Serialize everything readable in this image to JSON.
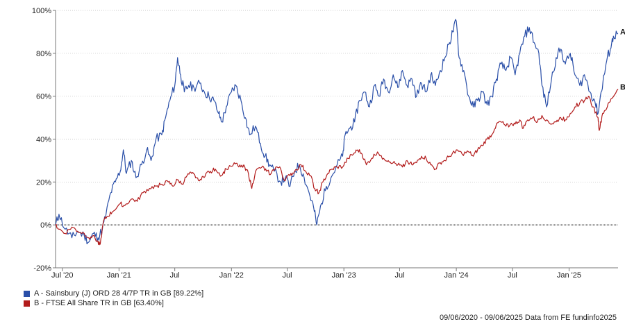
{
  "chart_data": {
    "type": "line",
    "y_axis": {
      "ticks": [
        "100%",
        "80%",
        "60%",
        "40%",
        "20%",
        "0%",
        "-20%"
      ],
      "tick_values": [
        100,
        80,
        60,
        40,
        20,
        0,
        -20
      ],
      "ylim": [
        -20,
        100
      ]
    },
    "x_axis": {
      "ticks": [
        "Jul '20",
        "Jan '21",
        "Jul",
        "Jan '22",
        "Jul",
        "Jan '23",
        "Jul",
        "Jan '24",
        "Jul",
        "Jan '25"
      ],
      "tick_dates": [
        "2020-07-01",
        "2021-01-01",
        "2021-07-01",
        "2022-01-01",
        "2022-07-01",
        "2023-01-01",
        "2023-07-01",
        "2024-01-01",
        "2024-07-01",
        "2025-01-01"
      ],
      "range": [
        "2020-06-09",
        "2025-06-09"
      ]
    },
    "grid": "horizontal dotted",
    "zero_line": "dotted black",
    "series": [
      {
        "name": "A - Sainsbury (J) ORD 28 4/7P TR in GB [89.22%]",
        "end_label": "A",
        "color": "#2a4fa8",
        "points": [
          [
            "2020-06-09",
            0
          ],
          [
            "2020-06-20",
            5
          ],
          [
            "2020-07-10",
            -2
          ],
          [
            "2020-08-01",
            -6
          ],
          [
            "2020-08-20",
            -3
          ],
          [
            "2020-09-10",
            -5
          ],
          [
            "2020-09-25",
            -8
          ],
          [
            "2020-10-10",
            -4
          ],
          [
            "2020-10-25",
            -6
          ],
          [
            "2020-11-08",
            -2
          ],
          [
            "2020-11-20",
            5
          ],
          [
            "2020-12-05",
            15
          ],
          [
            "2020-12-20",
            20
          ],
          [
            "2021-01-05",
            25
          ],
          [
            "2021-01-15",
            35
          ],
          [
            "2021-01-25",
            24
          ],
          [
            "2021-02-10",
            30
          ],
          [
            "2021-02-25",
            22
          ],
          [
            "2021-03-15",
            28
          ],
          [
            "2021-04-01",
            35
          ],
          [
            "2021-04-15",
            30
          ],
          [
            "2021-05-01",
            40
          ],
          [
            "2021-05-20",
            42
          ],
          [
            "2021-06-01",
            50
          ],
          [
            "2021-06-15",
            58
          ],
          [
            "2021-07-01",
            65
          ],
          [
            "2021-07-10",
            78
          ],
          [
            "2021-07-20",
            70
          ],
          [
            "2021-08-01",
            62
          ],
          [
            "2021-08-15",
            65
          ],
          [
            "2021-09-01",
            64
          ],
          [
            "2021-09-20",
            66
          ],
          [
            "2021-10-05",
            62
          ],
          [
            "2021-10-20",
            60
          ],
          [
            "2021-11-05",
            58
          ],
          [
            "2021-11-20",
            52
          ],
          [
            "2021-12-01",
            48
          ],
          [
            "2021-12-15",
            55
          ],
          [
            "2022-01-01",
            62
          ],
          [
            "2022-01-15",
            65
          ],
          [
            "2022-02-01",
            58
          ],
          [
            "2022-02-15",
            50
          ],
          [
            "2022-03-01",
            42
          ],
          [
            "2022-03-20",
            46
          ],
          [
            "2022-04-05",
            38
          ],
          [
            "2022-04-20",
            32
          ],
          [
            "2022-05-05",
            28
          ],
          [
            "2022-05-20",
            25
          ],
          [
            "2022-06-10",
            20
          ],
          [
            "2022-06-25",
            22
          ],
          [
            "2022-07-10",
            18
          ],
          [
            "2022-07-25",
            25
          ],
          [
            "2022-08-10",
            28
          ],
          [
            "2022-08-25",
            22
          ],
          [
            "2022-09-10",
            15
          ],
          [
            "2022-09-25",
            8
          ],
          [
            "2022-10-05",
            0
          ],
          [
            "2022-10-20",
            10
          ],
          [
            "2022-11-05",
            18
          ],
          [
            "2022-11-20",
            22
          ],
          [
            "2022-12-10",
            28
          ],
          [
            "2022-12-28",
            32
          ],
          [
            "2023-01-05",
            42
          ],
          [
            "2023-01-20",
            45
          ],
          [
            "2023-02-05",
            48
          ],
          [
            "2023-02-20",
            58
          ],
          [
            "2023-03-10",
            62
          ],
          [
            "2023-03-25",
            55
          ],
          [
            "2023-04-10",
            65
          ],
          [
            "2023-04-25",
            60
          ],
          [
            "2023-05-10",
            68
          ],
          [
            "2023-05-25",
            62
          ],
          [
            "2023-06-10",
            70
          ],
          [
            "2023-06-25",
            64
          ],
          [
            "2023-07-10",
            72
          ],
          [
            "2023-07-25",
            65
          ],
          [
            "2023-08-10",
            68
          ],
          [
            "2023-08-25",
            60
          ],
          [
            "2023-09-10",
            66
          ],
          [
            "2023-09-25",
            62
          ],
          [
            "2023-10-10",
            70
          ],
          [
            "2023-10-25",
            65
          ],
          [
            "2023-11-10",
            72
          ],
          [
            "2023-11-25",
            78
          ],
          [
            "2023-12-10",
            85
          ],
          [
            "2023-12-20",
            90
          ],
          [
            "2024-01-01",
            95
          ],
          [
            "2024-01-10",
            78
          ],
          [
            "2024-01-25",
            72
          ],
          [
            "2024-02-10",
            60
          ],
          [
            "2024-02-25",
            55
          ],
          [
            "2024-03-10",
            58
          ],
          [
            "2024-03-25",
            62
          ],
          [
            "2024-04-10",
            56
          ],
          [
            "2024-04-25",
            60
          ],
          [
            "2024-05-10",
            68
          ],
          [
            "2024-05-25",
            75
          ],
          [
            "2024-06-10",
            72
          ],
          [
            "2024-06-25",
            78
          ],
          [
            "2024-07-10",
            70
          ],
          [
            "2024-07-25",
            80
          ],
          [
            "2024-08-10",
            88
          ],
          [
            "2024-08-25",
            92
          ],
          [
            "2024-09-10",
            85
          ],
          [
            "2024-09-25",
            80
          ],
          [
            "2024-10-05",
            65
          ],
          [
            "2024-10-20",
            55
          ],
          [
            "2024-11-05",
            68
          ],
          [
            "2024-11-20",
            78
          ],
          [
            "2024-12-05",
            82
          ],
          [
            "2024-12-20",
            75
          ],
          [
            "2025-01-05",
            80
          ],
          [
            "2025-01-20",
            70
          ],
          [
            "2025-02-05",
            65
          ],
          [
            "2025-02-20",
            70
          ],
          [
            "2025-03-10",
            62
          ],
          [
            "2025-03-25",
            58
          ],
          [
            "2025-04-05",
            52
          ],
          [
            "2025-04-15",
            62
          ],
          [
            "2025-04-25",
            70
          ],
          [
            "2025-05-05",
            78
          ],
          [
            "2025-05-15",
            82
          ],
          [
            "2025-05-25",
            88
          ],
          [
            "2025-06-09",
            89.22
          ]
        ]
      },
      {
        "name": "B - FTSE All Share TR in GB [63.40%]",
        "end_label": "B",
        "color": "#b21b1b",
        "points": [
          [
            "2020-06-09",
            0
          ],
          [
            "2020-06-20",
            -2
          ],
          [
            "2020-07-10",
            -4
          ],
          [
            "2020-08-01",
            -1
          ],
          [
            "2020-08-20",
            -3
          ],
          [
            "2020-09-10",
            -4
          ],
          [
            "2020-09-25",
            -6
          ],
          [
            "2020-10-10",
            -5
          ],
          [
            "2020-10-25",
            -8
          ],
          [
            "2020-11-01",
            -9
          ],
          [
            "2020-11-12",
            2
          ],
          [
            "2020-11-25",
            4
          ],
          [
            "2020-12-10",
            6
          ],
          [
            "2021-01-05",
            10
          ],
          [
            "2021-01-20",
            9
          ],
          [
            "2021-02-10",
            12
          ],
          [
            "2021-03-01",
            11
          ],
          [
            "2021-03-20",
            15
          ],
          [
            "2021-04-10",
            17
          ],
          [
            "2021-05-01",
            18
          ],
          [
            "2021-05-20",
            19
          ],
          [
            "2021-06-10",
            20
          ],
          [
            "2021-06-25",
            18
          ],
          [
            "2021-07-10",
            21
          ],
          [
            "2021-07-25",
            19
          ],
          [
            "2021-08-10",
            23
          ],
          [
            "2021-08-25",
            24
          ],
          [
            "2021-09-10",
            22
          ],
          [
            "2021-09-25",
            21
          ],
          [
            "2021-10-10",
            24
          ],
          [
            "2021-10-25",
            25
          ],
          [
            "2021-11-10",
            26
          ],
          [
            "2021-11-30",
            23
          ],
          [
            "2021-12-15",
            26
          ],
          [
            "2022-01-10",
            29
          ],
          [
            "2022-01-25",
            27
          ],
          [
            "2022-02-10",
            28
          ],
          [
            "2022-02-25",
            24
          ],
          [
            "2022-03-08",
            17
          ],
          [
            "2022-03-20",
            25
          ],
          [
            "2022-04-10",
            27
          ],
          [
            "2022-04-25",
            25
          ],
          [
            "2022-05-10",
            24
          ],
          [
            "2022-05-25",
            27
          ],
          [
            "2022-06-10",
            26
          ],
          [
            "2022-06-20",
            21
          ],
          [
            "2022-07-10",
            23
          ],
          [
            "2022-07-25",
            25
          ],
          [
            "2022-08-15",
            28
          ],
          [
            "2022-08-30",
            25
          ],
          [
            "2022-09-15",
            23
          ],
          [
            "2022-09-28",
            17
          ],
          [
            "2022-10-12",
            15
          ],
          [
            "2022-10-25",
            20
          ],
          [
            "2022-11-10",
            24
          ],
          [
            "2022-11-25",
            26
          ],
          [
            "2022-12-10",
            27
          ],
          [
            "2022-12-28",
            27
          ],
          [
            "2023-01-15",
            31
          ],
          [
            "2023-02-01",
            33
          ],
          [
            "2023-02-15",
            35
          ],
          [
            "2023-03-01",
            33
          ],
          [
            "2023-03-15",
            28
          ],
          [
            "2023-04-01",
            31
          ],
          [
            "2023-04-20",
            34
          ],
          [
            "2023-05-10",
            31
          ],
          [
            "2023-05-25",
            30
          ],
          [
            "2023-06-10",
            29
          ],
          [
            "2023-06-25",
            28
          ],
          [
            "2023-07-10",
            27
          ],
          [
            "2023-07-25",
            30
          ],
          [
            "2023-08-10",
            28
          ],
          [
            "2023-08-25",
            29
          ],
          [
            "2023-09-10",
            32
          ],
          [
            "2023-09-25",
            31
          ],
          [
            "2023-10-10",
            28
          ],
          [
            "2023-10-25",
            26
          ],
          [
            "2023-11-10",
            29
          ],
          [
            "2023-11-25",
            30
          ],
          [
            "2023-12-10",
            32
          ],
          [
            "2024-01-01",
            35
          ],
          [
            "2024-01-20",
            33
          ],
          [
            "2024-02-10",
            34
          ],
          [
            "2024-02-25",
            32
          ],
          [
            "2024-03-10",
            35
          ],
          [
            "2024-03-25",
            37
          ],
          [
            "2024-04-10",
            40
          ],
          [
            "2024-04-25",
            42
          ],
          [
            "2024-05-10",
            47
          ],
          [
            "2024-05-25",
            48
          ],
          [
            "2024-06-10",
            46
          ],
          [
            "2024-06-25",
            47
          ],
          [
            "2024-07-10",
            47
          ],
          [
            "2024-07-25",
            49
          ],
          [
            "2024-08-05",
            45
          ],
          [
            "2024-08-20",
            49
          ],
          [
            "2024-09-05",
            50
          ],
          [
            "2024-09-20",
            48
          ],
          [
            "2024-10-05",
            51
          ],
          [
            "2024-10-20",
            49
          ],
          [
            "2024-11-05",
            47
          ],
          [
            "2024-11-20",
            48
          ],
          [
            "2024-12-05",
            50
          ],
          [
            "2024-12-20",
            49
          ],
          [
            "2025-01-05",
            52
          ],
          [
            "2025-01-20",
            55
          ],
          [
            "2025-02-05",
            57
          ],
          [
            "2025-02-20",
            58
          ],
          [
            "2025-03-05",
            60
          ],
          [
            "2025-03-20",
            55
          ],
          [
            "2025-04-05",
            50
          ],
          [
            "2025-04-09",
            44
          ],
          [
            "2025-04-20",
            52
          ],
          [
            "2025-05-05",
            55
          ],
          [
            "2025-05-20",
            59
          ],
          [
            "2025-06-09",
            63.4
          ]
        ]
      }
    ]
  },
  "footer": {
    "text": "09/06/2020 - 09/06/2025 Data from FE fundinfo2025"
  }
}
